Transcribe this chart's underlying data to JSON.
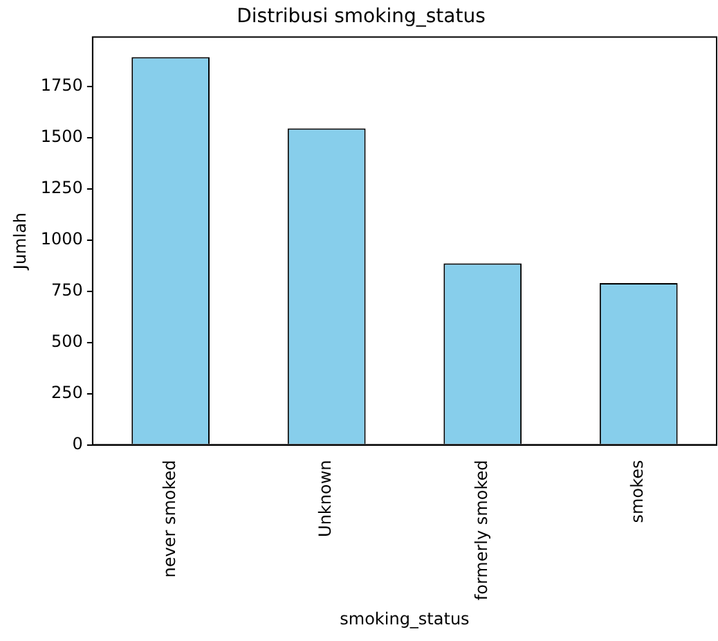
{
  "chart_data": {
    "type": "bar",
    "title": "Distribusi smoking_status",
    "xlabel": "smoking_status",
    "ylabel": "Jumlah",
    "categories": [
      "never smoked",
      "Unknown",
      "formerly smoked",
      "smokes"
    ],
    "values": [
      1892,
      1544,
      885,
      789
    ],
    "color": "#87ceeb",
    "ylim": [
      0,
      1990
    ],
    "yticks": [
      0,
      250,
      500,
      750,
      1000,
      1250,
      1500,
      1750
    ],
    "grid": false,
    "legend": false
  }
}
